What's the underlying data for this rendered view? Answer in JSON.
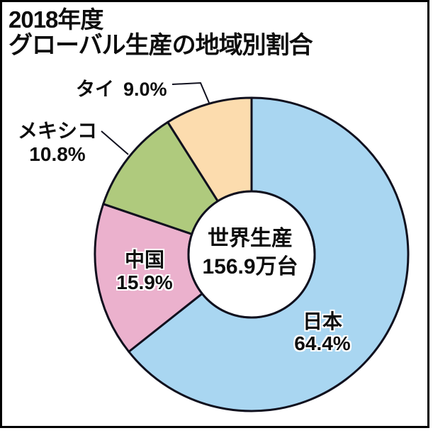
{
  "title": {
    "line1": "2018年度",
    "line2": "グローバル生産の地域別割合"
  },
  "chart_data": {
    "type": "pie",
    "subtype": "donut",
    "title": "2018年度 グローバル生産の地域別割合",
    "start_angle": "12-oclock",
    "direction": "clockwise",
    "total_label": "世界生産",
    "total_value": "156.9万台",
    "categories": [
      "日本",
      "中国",
      "メキシコ",
      "タイ"
    ],
    "values": [
      64.4,
      15.9,
      10.8,
      9.0
    ],
    "slices": [
      {
        "id": "japan",
        "name": "日本",
        "pct": 64.4,
        "pct_text": "64.4%",
        "color": "#A9D6F1",
        "label_placement": "inside"
      },
      {
        "id": "china",
        "name": "中国",
        "pct": 15.9,
        "pct_text": "15.9%",
        "color": "#EBB1CD",
        "label_placement": "inside"
      },
      {
        "id": "mexico",
        "name": "メキシコ",
        "pct": 10.8,
        "pct_text": "10.8%",
        "color": "#AFCA7D",
        "label_placement": "outside"
      },
      {
        "id": "thailand",
        "name": "タイ",
        "pct": 9.0,
        "pct_text": "9.0%",
        "color": "#FCDCAE",
        "label_placement": "outside"
      }
    ],
    "outline_color": "#10101e",
    "hole_fill": "#ffffff",
    "legend": "none",
    "grid": "off"
  }
}
